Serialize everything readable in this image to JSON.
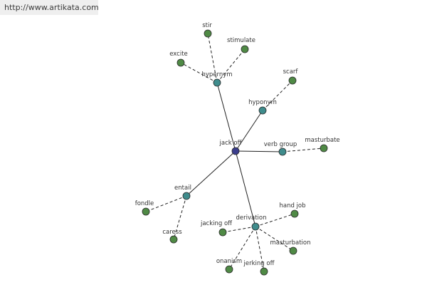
{
  "header": {
    "url": "http://www.artikata.com"
  },
  "graph": {
    "center": {
      "id": "center",
      "label": "jack off"
    },
    "relations": [
      {
        "id": "hypernym",
        "label": "hypernym",
        "words": [
          {
            "id": "stir",
            "label": "stir"
          },
          {
            "id": "stimulate",
            "label": "stimulate"
          },
          {
            "id": "excite",
            "label": "excite"
          }
        ]
      },
      {
        "id": "hyponym",
        "label": "hyponym",
        "words": [
          {
            "id": "scarf",
            "label": "scarf"
          }
        ]
      },
      {
        "id": "verbgroup",
        "label": "verb group",
        "words": [
          {
            "id": "masturbate",
            "label": "masturbate"
          }
        ]
      },
      {
        "id": "entail",
        "label": "entail",
        "words": [
          {
            "id": "fondle",
            "label": "fondle"
          },
          {
            "id": "caress",
            "label": "caress"
          }
        ]
      },
      {
        "id": "derivation",
        "label": "derivation",
        "words": [
          {
            "id": "handjob",
            "label": "hand job"
          },
          {
            "id": "jackingoff",
            "label": "jacking off"
          },
          {
            "id": "masturbation",
            "label": "masturbation"
          },
          {
            "id": "onanism",
            "label": "onanism"
          },
          {
            "id": "jerkingoff",
            "label": "jerking off"
          }
        ]
      }
    ]
  },
  "colors": {
    "center_node": "#3a3d8c",
    "relation_node": "#3f8c8c",
    "word_node": "#4f8a45",
    "node_stroke": "#2a2a2a",
    "edge": "#222222"
  }
}
